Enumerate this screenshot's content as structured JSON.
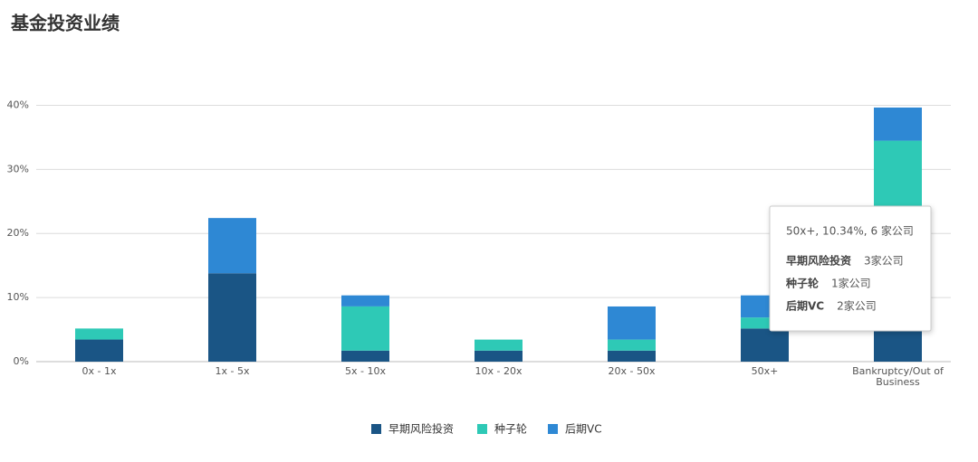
{
  "chart_data": {
    "type": "stacked_bar",
    "title": "基金投资业绩",
    "categories": [
      "0x - 1x",
      "1x - 5x",
      "5x - 10x",
      "10x - 20x",
      "20x - 50x",
      "50x+",
      "Bankruptcy/Out of Business"
    ],
    "series": [
      {
        "name": "早期风险投资",
        "color": "#1a5585",
        "values": [
          3.45,
          13.79,
          1.72,
          1.72,
          1.72,
          5.17,
          20.69
        ]
      },
      {
        "name": "种子轮",
        "color": "#2ec9b6",
        "values": [
          1.72,
          0,
          6.9,
          1.72,
          1.72,
          1.72,
          13.79
        ]
      },
      {
        "name": "后期VC",
        "color": "#2e88d4",
        "values": [
          0,
          8.62,
          1.72,
          0,
          5.17,
          3.45,
          5.17
        ]
      }
    ],
    "ylim": [
      0,
      45
    ],
    "yticks": [
      {
        "value": 0,
        "label": "0%"
      },
      {
        "value": 10,
        "label": "10%"
      },
      {
        "value": 20,
        "label": "20%"
      },
      {
        "value": 30,
        "label": "30%"
      },
      {
        "value": 40,
        "label": "40%"
      }
    ],
    "grid": true,
    "legend": "bottom",
    "tooltip": {
      "header": "50x+, 10.34%, 6 家公司",
      "rows": [
        [
          "早期风险投资",
          "3家公司"
        ],
        [
          "种子轮",
          "1家公司"
        ],
        [
          "后期VC",
          "2家公司"
        ]
      ]
    }
  }
}
